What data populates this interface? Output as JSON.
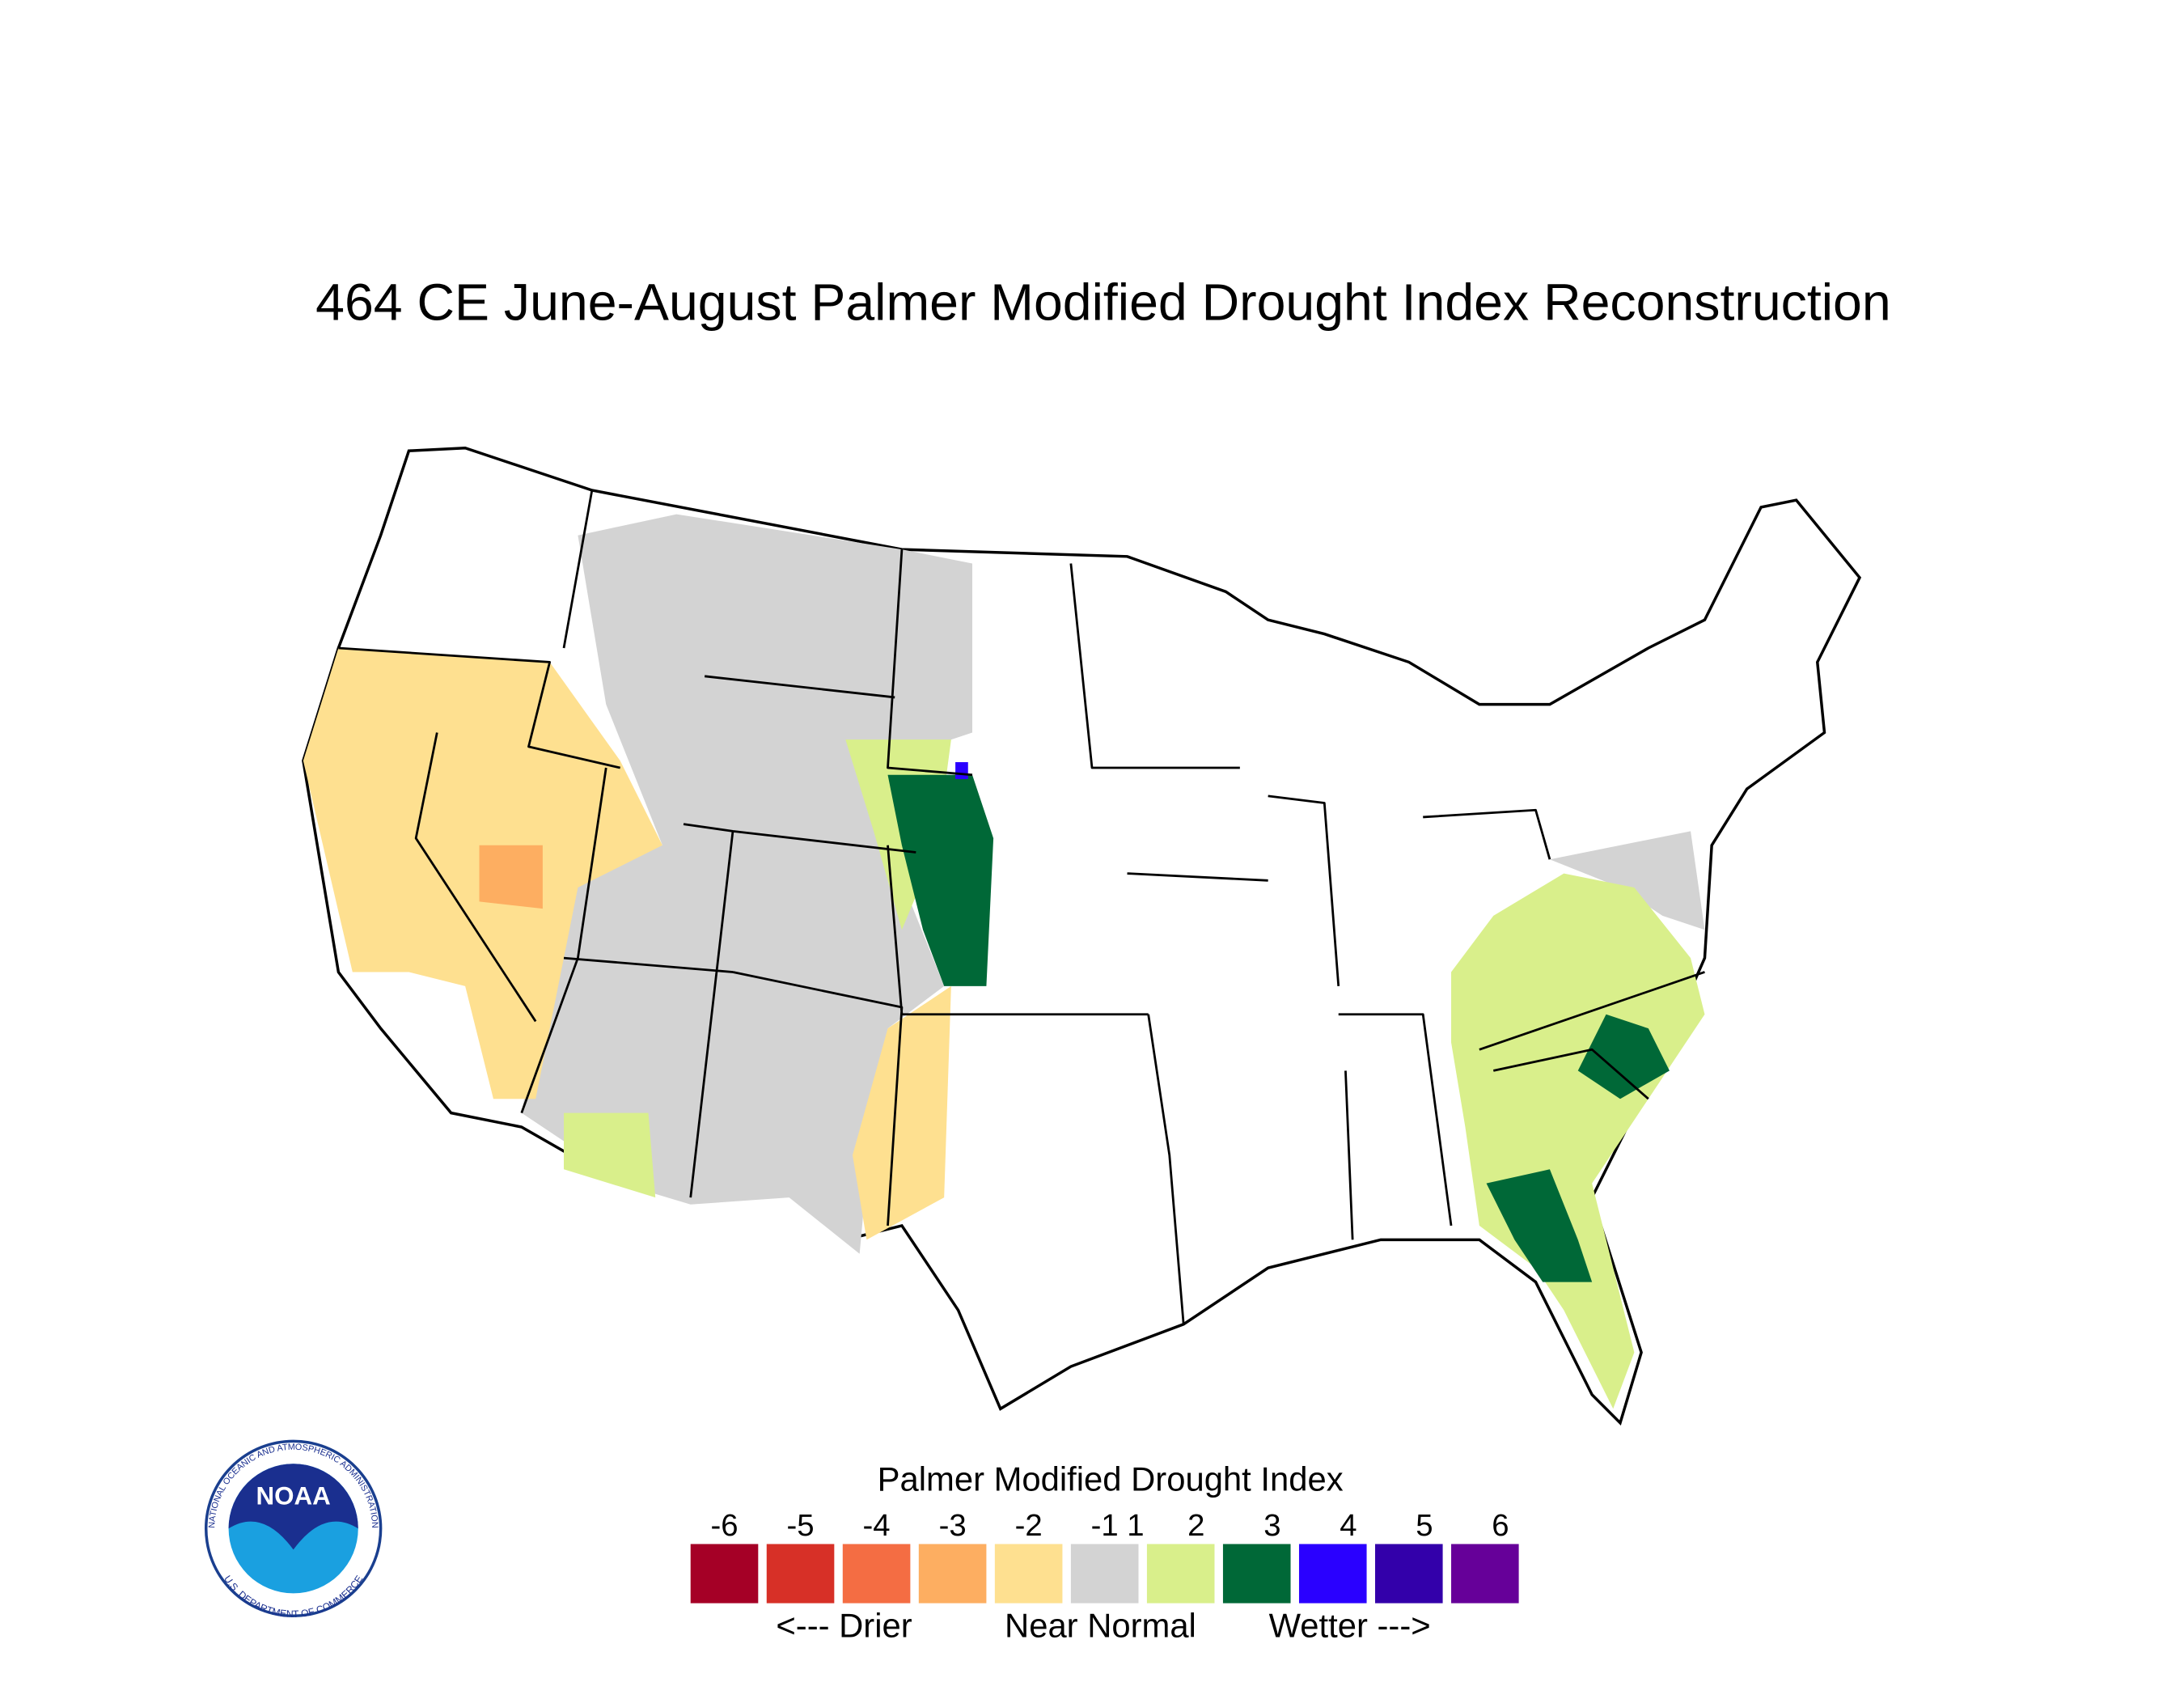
{
  "title": "464 CE  June-August  Palmer Modified Drought Index Reconstruction",
  "legend": {
    "title": "Palmer Modified Drought Index",
    "ticks": [
      -6,
      -5,
      -4,
      -3,
      -2,
      -1,
      1,
      2,
      3,
      4,
      5,
      6
    ],
    "colors": [
      "#a50026",
      "#d73027",
      "#f46d43",
      "#fdae61",
      "#fee090",
      "#d3d3d3",
      "#d9ef8b",
      "#006837",
      "#2a00ff",
      "#3300aa",
      "#660099"
    ],
    "drier": "<--- Drier",
    "normal": "Near Normal",
    "wetter": "Wetter --->"
  },
  "logo": {
    "name": "NOAA",
    "top_text": "NATIONAL OCEANIC AND ATMOSPHERIC ADMINISTRATION",
    "bottom_text": "U.S. DEPARTMENT OF COMMERCE"
  }
}
